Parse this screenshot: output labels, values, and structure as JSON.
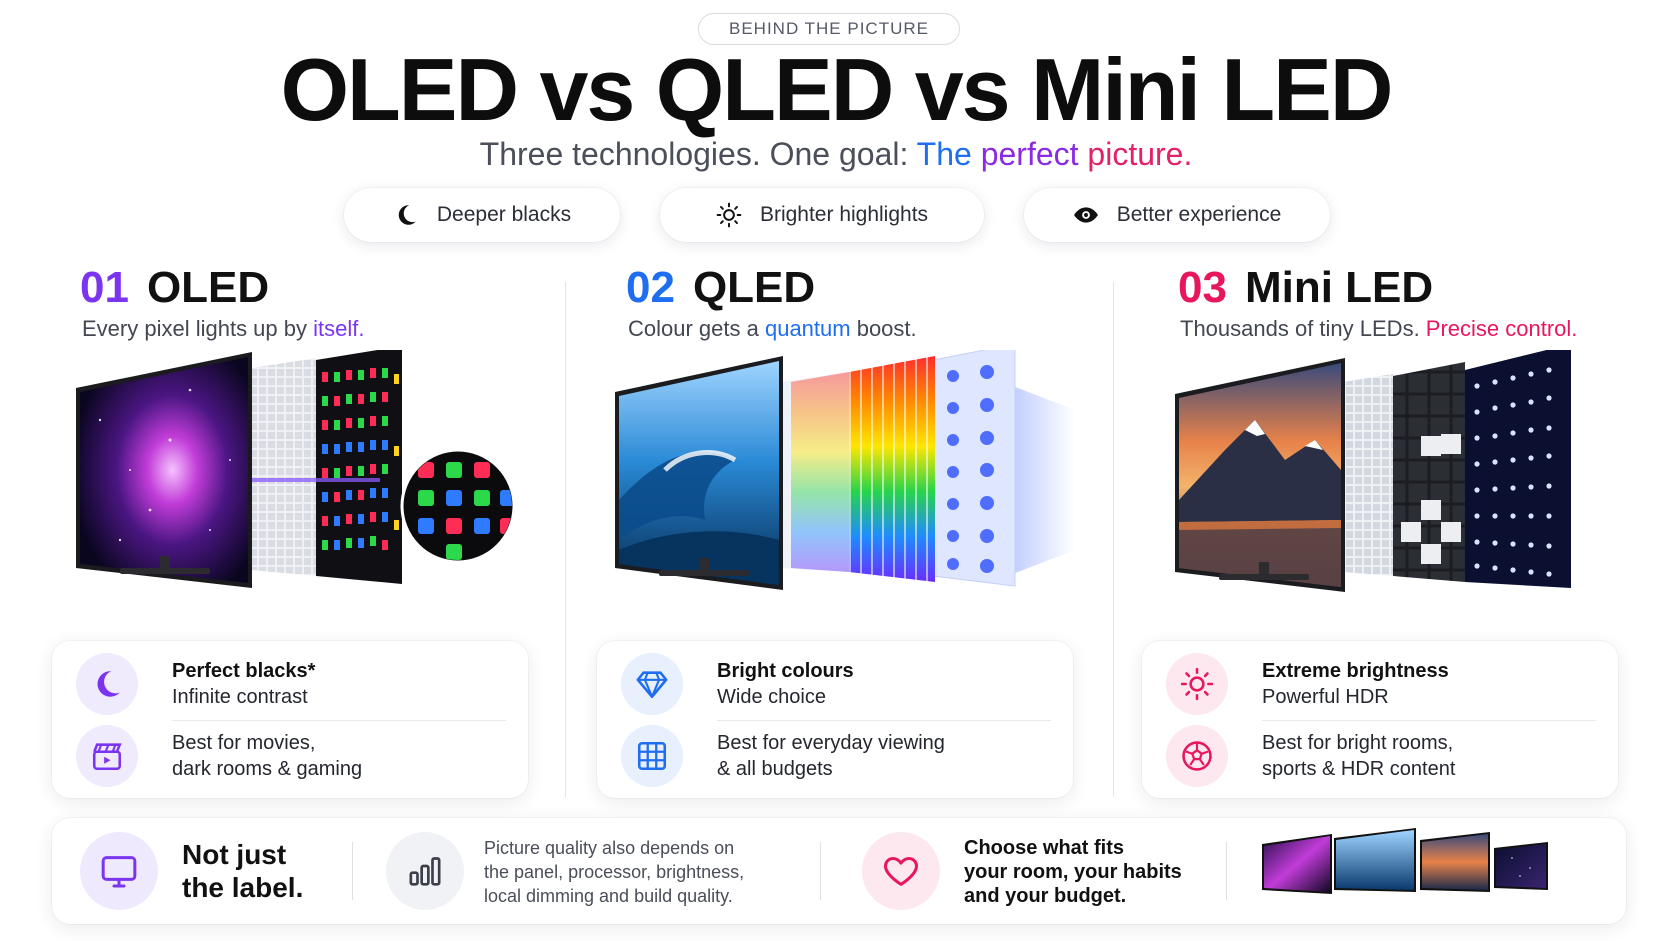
{
  "header": {
    "eyebrow": "BEHIND THE PICTURE",
    "title": "OLED vs QLED vs Mini LED",
    "subtitle_lead": "Three technologies. One goal: ",
    "subtitle_the": "The ",
    "subtitle_perfect": "perfect ",
    "subtitle_picture": "picture."
  },
  "pills": [
    {
      "label": "Deeper blacks",
      "icon": "moon-icon"
    },
    {
      "label": "Brighter highlights",
      "icon": "sun-icon"
    },
    {
      "label": "Better experience",
      "icon": "eye-icon"
    }
  ],
  "columns": [
    {
      "num": "01",
      "name": "OLED",
      "num_color": "#7b35f0",
      "sub_lead": "Every pixel lights up by ",
      "sub_accent": "itself.",
      "sub_tail": "",
      "accent_color": "#7b35f0",
      "rows": [
        {
          "icon": "moon-icon",
          "bold": "Perfect blacks*",
          "text": "Infinite contrast"
        },
        {
          "icon": "clapperboard-icon",
          "bold": "",
          "text1": "Best for movies,",
          "text2": "dark rooms & gaming"
        }
      ]
    },
    {
      "num": "02",
      "name": "QLED",
      "num_color": "#1f6ef0",
      "sub_lead": "Colour gets a ",
      "sub_accent": "quantum",
      "sub_tail": " boost.",
      "accent_color": "#1f6ef0",
      "rows": [
        {
          "icon": "diamond-icon",
          "bold": "Bright colours",
          "text": "Wide choice"
        },
        {
          "icon": "grid-icon",
          "bold": "",
          "text1": "Best for everyday viewing",
          "text2": "& all budgets"
        }
      ]
    },
    {
      "num": "03",
      "name": "Mini LED",
      "num_color": "#e8175d",
      "sub_lead": "Thousands of tiny LEDs. ",
      "sub_accent": "Precise control.",
      "sub_tail": "",
      "accent_color": "#e8175d",
      "rows": [
        {
          "icon": "sun-icon",
          "bold": "Extreme brightness",
          "text": "Powerful HDR"
        },
        {
          "icon": "football-icon",
          "bold": "",
          "text1": "Best for bright rooms,",
          "text2": "sports & HDR content"
        }
      ]
    }
  ],
  "footer": {
    "label_line1": "Not just",
    "label_line2": "the label.",
    "note_line1": "Picture quality also depends on",
    "note_line2": "the panel, processor, brightness,",
    "note_line3": "local dimming and build quality.",
    "choose_line1": "Choose what fits",
    "choose_line2": "your room, your habits",
    "choose_line3": "and your budget."
  },
  "colors": {
    "purple": "#7b35f0",
    "blue": "#1f6ef0",
    "pink": "#e8175d"
  }
}
